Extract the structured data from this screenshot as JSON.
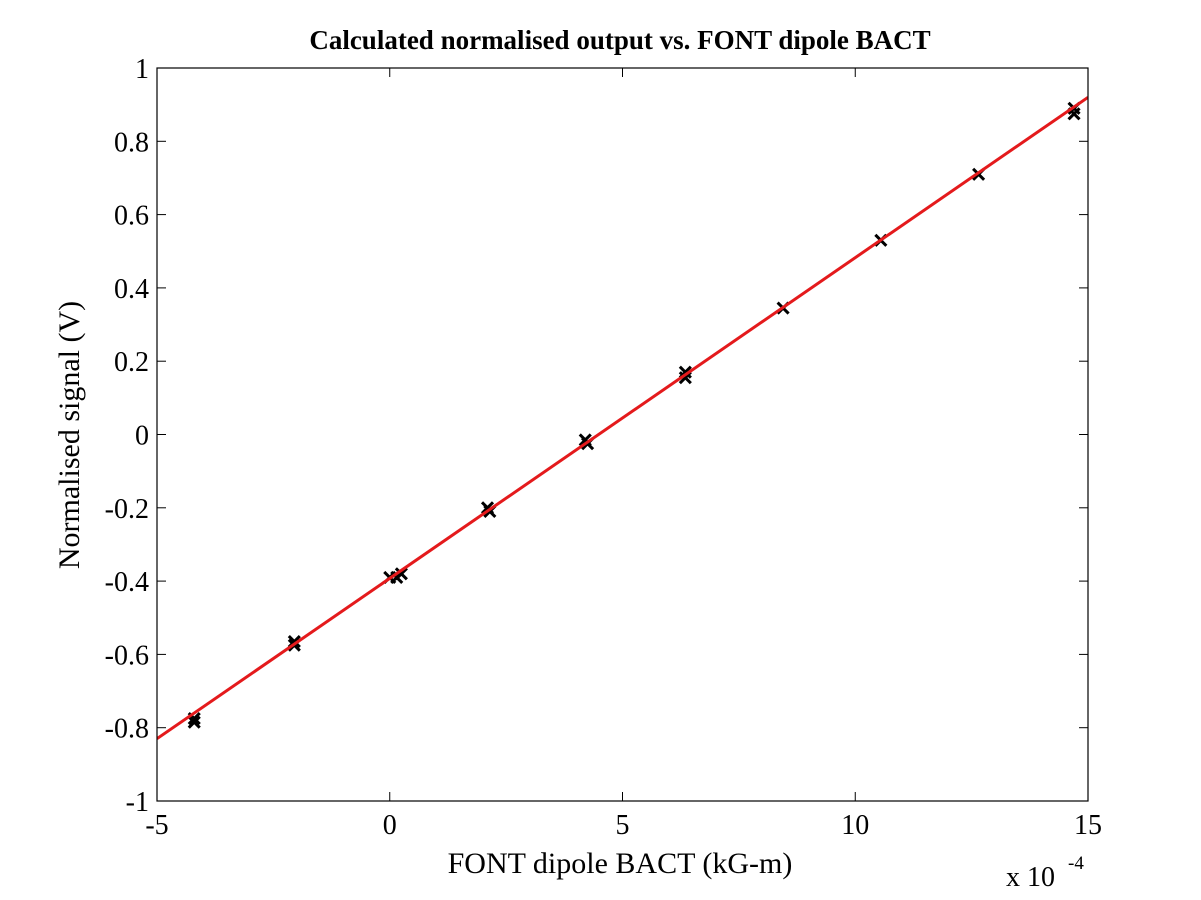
{
  "chart_data": {
    "type": "scatter",
    "title": "Calculated normalised output vs. FONT dipole BACT",
    "xlabel": "FONT dipole BACT (kG-m)",
    "ylabel": "Normalised signal (V)",
    "x_multiplier_label": "x 10",
    "x_multiplier_exponent": "-4",
    "xlim": [
      -5,
      15
    ],
    "ylim": [
      -1,
      1
    ],
    "xticks": [
      -5,
      0,
      5,
      10,
      15
    ],
    "xtick_labels": [
      "-5",
      "0",
      "5",
      "10",
      "15"
    ],
    "yticks": [
      1,
      0.8,
      0.6,
      0.4,
      0.2,
      0,
      -0.2,
      -0.4,
      -0.6,
      -0.8,
      -1
    ],
    "ytick_labels": [
      "1",
      "0.8",
      "0.6",
      "0.4",
      "0.2",
      "0",
      "-0.2",
      "-0.4",
      "-0.6",
      "-0.8",
      "-1"
    ],
    "grid": false,
    "series": [
      {
        "marker": "x",
        "color": "#000000",
        "points": [
          {
            "x": -4.2,
            "y": -0.775
          },
          {
            "x": -4.2,
            "y": -0.785
          },
          {
            "x": -2.05,
            "y": -0.565
          },
          {
            "x": -2.05,
            "y": -0.575
          },
          {
            "x": 0.0,
            "y": -0.39
          },
          {
            "x": 0.25,
            "y": -0.38
          },
          {
            "x": 0.15,
            "y": -0.39
          },
          {
            "x": 2.1,
            "y": -0.2
          },
          {
            "x": 2.15,
            "y": -0.21
          },
          {
            "x": 4.2,
            "y": -0.015
          },
          {
            "x": 4.25,
            "y": -0.025
          },
          {
            "x": 6.35,
            "y": 0.17
          },
          {
            "x": 6.35,
            "y": 0.155
          },
          {
            "x": 8.45,
            "y": 0.345
          },
          {
            "x": 10.55,
            "y": 0.53
          },
          {
            "x": 12.65,
            "y": 0.71
          },
          {
            "x": 14.7,
            "y": 0.89
          },
          {
            "x": 14.7,
            "y": 0.875
          }
        ]
      },
      {
        "type": "line",
        "color": "#e41a1c",
        "x": [
          -5,
          15
        ],
        "y": [
          -0.83,
          0.92
        ]
      }
    ]
  }
}
